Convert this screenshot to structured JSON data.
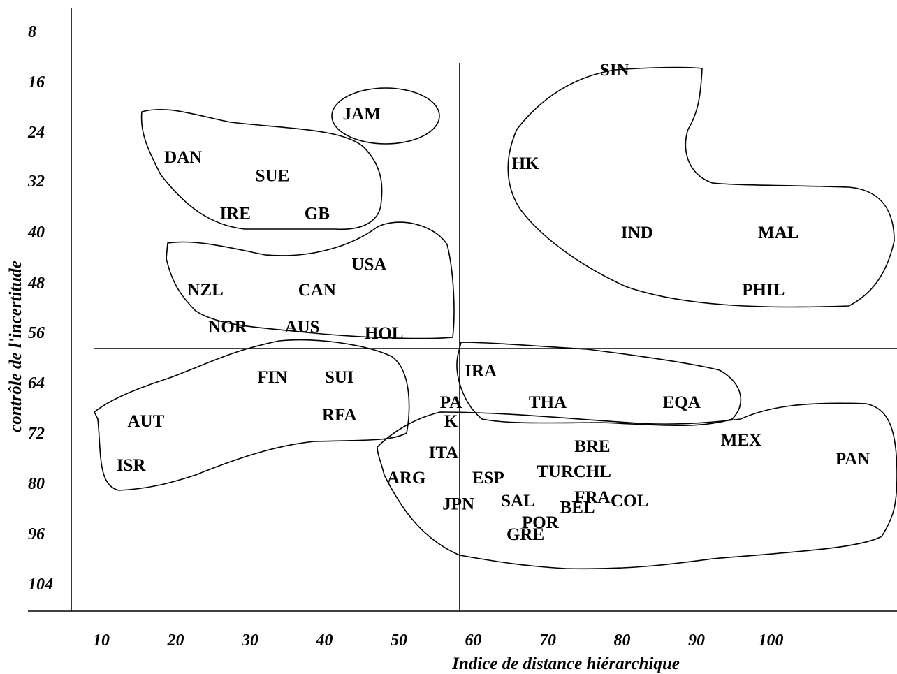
{
  "chart_data": {
    "type": "scatter",
    "xlabel": "Indice de distance hiérarchique",
    "ylabel": "contrôle de l'incertitude",
    "x_ticks": [
      10,
      20,
      30,
      40,
      50,
      60,
      70,
      80,
      90,
      100
    ],
    "y_ticks": [
      8,
      16,
      24,
      32,
      40,
      48,
      56,
      64,
      72,
      80,
      96,
      104
    ],
    "divider_x": 54,
    "divider_y": 59,
    "points": [
      {
        "label": "JAM",
        "x": 45,
        "y": 21
      },
      {
        "label": "DAN",
        "x": 21,
        "y": 28
      },
      {
        "label": "SUE",
        "x": 33,
        "y": 31
      },
      {
        "label": "IRE",
        "x": 28,
        "y": 37
      },
      {
        "label": "GB",
        "x": 39,
        "y": 37
      },
      {
        "label": "SIN",
        "x": 79,
        "y": 14
      },
      {
        "label": "HK",
        "x": 67,
        "y": 29
      },
      {
        "label": "IND",
        "x": 82,
        "y": 40
      },
      {
        "label": "MAL",
        "x": 101,
        "y": 40
      },
      {
        "label": "PHIL",
        "x": 99,
        "y": 49
      },
      {
        "label": "USA",
        "x": 46,
        "y": 45
      },
      {
        "label": "NZL",
        "x": 24,
        "y": 49
      },
      {
        "label": "CAN",
        "x": 39,
        "y": 49
      },
      {
        "label": "NOR",
        "x": 27,
        "y": 55
      },
      {
        "label": "AUS",
        "x": 37,
        "y": 55
      },
      {
        "label": "HOL",
        "x": 48,
        "y": 56
      },
      {
        "label": "FIN",
        "x": 33,
        "y": 63
      },
      {
        "label": "SUI",
        "x": 42,
        "y": 63
      },
      {
        "label": "AUT",
        "x": 16,
        "y": 70
      },
      {
        "label": "RFA",
        "x": 42,
        "y": 69
      },
      {
        "label": "ISR",
        "x": 14,
        "y": 77
      },
      {
        "label": "IRA",
        "x": 61,
        "y": 62
      },
      {
        "label": "PA",
        "x": 57,
        "y": 67
      },
      {
        "label": "K",
        "x": 57,
        "y": 70
      },
      {
        "label": "THA",
        "x": 70,
        "y": 67
      },
      {
        "label": "EQA",
        "x": 88,
        "y": 67
      },
      {
        "label": "MEX",
        "x": 96,
        "y": 73
      },
      {
        "label": "PAN",
        "x": 111,
        "y": 76
      },
      {
        "label": "ITA",
        "x": 56,
        "y": 75
      },
      {
        "label": "BRE",
        "x": 76,
        "y": 74
      },
      {
        "label": "TUR",
        "x": 71,
        "y": 78
      },
      {
        "label": "CHL",
        "x": 76,
        "y": 78
      },
      {
        "label": "ARG",
        "x": 51,
        "y": 79
      },
      {
        "label": "ESP",
        "x": 62,
        "y": 79
      },
      {
        "label": "JPN",
        "x": 58,
        "y": 86
      },
      {
        "label": "SAL",
        "x": 66,
        "y": 85
      },
      {
        "label": "FRA",
        "x": 76,
        "y": 84
      },
      {
        "label": "COL",
        "x": 81,
        "y": 85
      },
      {
        "label": "BEL",
        "x": 74,
        "y": 87
      },
      {
        "label": "POR",
        "x": 69,
        "y": 92
      },
      {
        "label": "GRE",
        "x": 67,
        "y": 96
      }
    ]
  }
}
